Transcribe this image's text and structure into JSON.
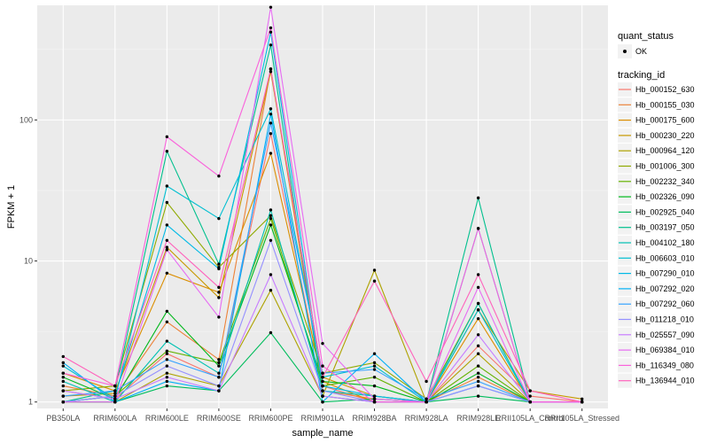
{
  "chart_data": {
    "type": "line",
    "xlabel": "sample_name",
    "ylabel": "FPKM + 1",
    "y_scale": "log",
    "ylim": [
      0.9,
      650
    ],
    "y_ticks": [
      1,
      10,
      100
    ],
    "y_tick_labels": [
      "1",
      "10",
      "100"
    ],
    "grid": true,
    "legend_position": "right",
    "categories": [
      "PB350LA",
      "RRIM600LA",
      "RRIM600LE",
      "RRIM600SE",
      "RRIM600PE",
      "RRIM901LA",
      "RRIM928BA",
      "RRIM928LA",
      "RRIM928LE",
      "RRII105LA_Control",
      "RRII105LA_Stressed"
    ],
    "legend_shape": {
      "title": "quant_status",
      "entries": [
        "OK"
      ]
    },
    "legend_color_title": "tracking_id",
    "series": [
      {
        "name": "Hb_000152_630",
        "color": "#F8766D",
        "values": [
          1.2,
          1.05,
          2.2,
          1.5,
          80,
          1.3,
          1.0,
          1.0,
          2.5,
          1.1,
          1.0
        ]
      },
      {
        "name": "Hb_000155_030",
        "color": "#EC8239",
        "values": [
          1.3,
          1.1,
          3.7,
          2.0,
          230,
          1.2,
          1.05,
          1.0,
          1.5,
          1.0,
          1.0
        ]
      },
      {
        "name": "Hb_000175_600",
        "color": "#DB8E00",
        "values": [
          1.6,
          1.2,
          8.2,
          6.0,
          58,
          1.4,
          1.0,
          1.0,
          3.9,
          1.0,
          1.0
        ]
      },
      {
        "name": "Hb_000230_220",
        "color": "#C79800",
        "values": [
          1.1,
          1.15,
          12.5,
          5.5,
          220,
          1.5,
          1.1,
          1.0,
          4.5,
          1.2,
          1.05
        ]
      },
      {
        "name": "Hb_000964_120",
        "color": "#AEA200",
        "values": [
          1.0,
          1.0,
          1.6,
          1.3,
          6.2,
          1.1,
          8.6,
          1.0,
          2.2,
          1.0,
          1.0
        ]
      },
      {
        "name": "Hb_001006_300",
        "color": "#8FAA00",
        "values": [
          1.2,
          1.3,
          26,
          9.0,
          21,
          1.6,
          1.9,
          1.05,
          5.0,
          1.0,
          1.0
        ]
      },
      {
        "name": "Hb_002232_340",
        "color": "#64B200",
        "values": [
          1.0,
          1.1,
          2.3,
          1.9,
          20,
          1.3,
          1.5,
          1.0,
          1.8,
          1.0,
          1.0
        ]
      },
      {
        "name": "Hb_002326_090",
        "color": "#00B81B",
        "values": [
          1.5,
          1.05,
          4.4,
          1.8,
          18,
          1.4,
          1.3,
          1.0,
          1.6,
          1.0,
          1.0
        ]
      },
      {
        "name": "Hb_002925_040",
        "color": "#00BD5C",
        "values": [
          1.0,
          1.0,
          1.3,
          1.2,
          3.1,
          1.0,
          1.05,
          1.0,
          1.1,
          1.0,
          1.0
        ]
      },
      {
        "name": "Hb_003197_050",
        "color": "#00C08E",
        "values": [
          1.0,
          1.2,
          60,
          9.5,
          340,
          1.1,
          1.0,
          1.0,
          28,
          1.0,
          1.0
        ]
      },
      {
        "name": "Hb_004102_180",
        "color": "#00C1B2",
        "values": [
          1.4,
          1.0,
          2.7,
          1.6,
          23,
          1.2,
          1.1,
          1.0,
          5.0,
          1.0,
          1.0
        ]
      },
      {
        "name": "Hb_006603_010",
        "color": "#00BFD1",
        "values": [
          1.8,
          1.05,
          34,
          20,
          120,
          1.5,
          1.8,
          1.0,
          4.5,
          1.0,
          1.0
        ]
      },
      {
        "name": "Hb_007290_010",
        "color": "#00BAE6",
        "values": [
          1.0,
          1.1,
          18,
          8.8,
          420,
          1.3,
          1.1,
          1.0,
          17,
          1.0,
          1.0
        ]
      },
      {
        "name": "Hb_007292_020",
        "color": "#00B0F6",
        "values": [
          1.9,
          1.0,
          1.4,
          1.2,
          110,
          1.0,
          2.2,
          1.0,
          1.3,
          1.0,
          1.0
        ]
      },
      {
        "name": "Hb_007292_060",
        "color": "#35A2FF",
        "values": [
          1.1,
          1.2,
          2.0,
          1.5,
          95,
          1.6,
          1.7,
          1.05,
          1.4,
          1.0,
          1.0
        ]
      },
      {
        "name": "Hb_011218_010",
        "color": "#9590FF",
        "values": [
          1.0,
          1.1,
          1.8,
          1.3,
          14,
          1.2,
          1.0,
          1.0,
          1.3,
          1.0,
          1.0
        ]
      },
      {
        "name": "Hb_025557_090",
        "color": "#C77CFF",
        "values": [
          1.2,
          1.05,
          1.5,
          1.2,
          8,
          1.1,
          1.0,
          1.0,
          3.0,
          1.0,
          1.0
        ]
      },
      {
        "name": "Hb_069384_010",
        "color": "#E76BF3",
        "values": [
          1.0,
          1.0,
          12,
          4.0,
          630,
          2.6,
          1.05,
          1.0,
          6.5,
          1.0,
          1.0
        ]
      },
      {
        "name": "Hb_116349_080",
        "color": "#FA62DB",
        "values": [
          1.6,
          1.3,
          76,
          40,
          450,
          1.8,
          1.0,
          1.0,
          17,
          1.0,
          1.0
        ]
      },
      {
        "name": "Hb_136944_010",
        "color": "#FF62BC",
        "values": [
          2.1,
          1.3,
          14,
          6.5,
          230,
          1.5,
          7.2,
          1.4,
          8.0,
          1.2,
          1.0
        ]
      }
    ]
  }
}
